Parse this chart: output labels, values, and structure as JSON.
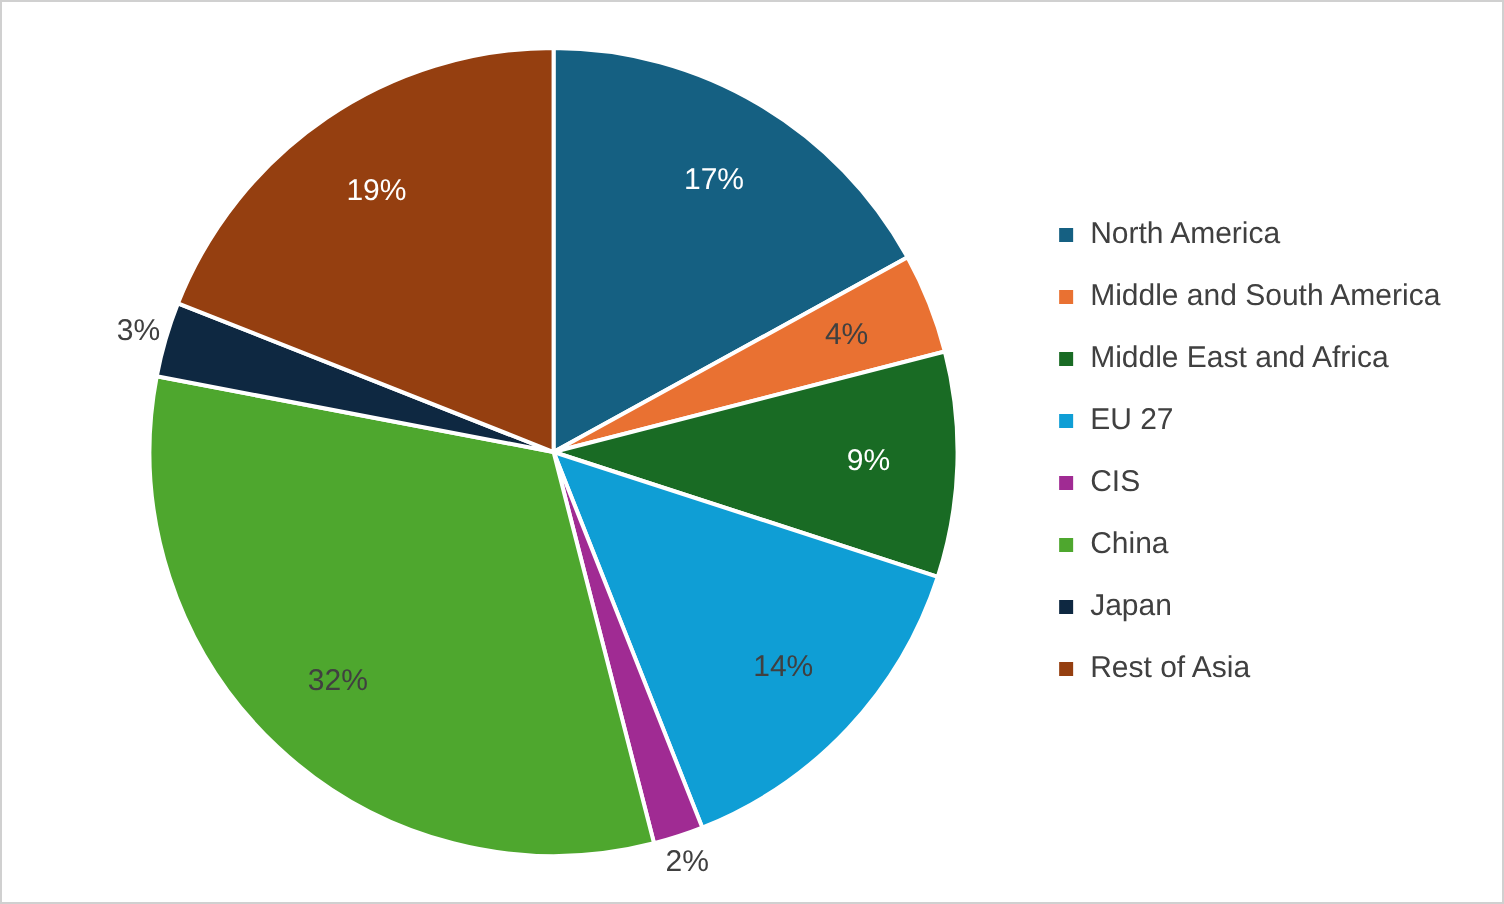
{
  "chart_data": {
    "type": "pie",
    "categories": [
      "North America",
      "Middle and South America",
      "Middle East and Africa",
      "EU 27",
      "CIS",
      "China",
      "Japan",
      "Rest of Asia"
    ],
    "values": [
      17,
      4,
      9,
      14,
      2,
      32,
      3,
      19
    ],
    "colors": [
      "#156082",
      "#e97132",
      "#196b24",
      "#0f9ed5",
      "#a02b93",
      "#4ea72e",
      "#0e2841",
      "#953f10"
    ],
    "value_labels": [
      "17%",
      "4%",
      "9%",
      "14%",
      "2%",
      "32%",
      "3%",
      "19%"
    ],
    "legend": "right"
  }
}
